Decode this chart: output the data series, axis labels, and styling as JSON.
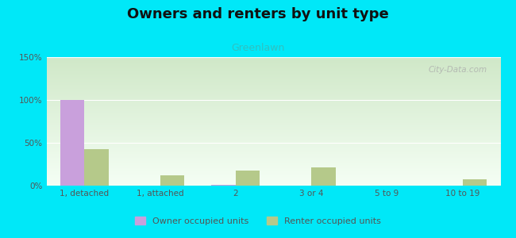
{
  "title": "Owners and renters by unit type",
  "subtitle": "Greenlawn",
  "categories": [
    "1, detached",
    "1, attached",
    "2",
    "3 or 4",
    "5 to 9",
    "10 to 19"
  ],
  "owner_values": [
    100,
    0,
    1,
    0,
    0,
    0
  ],
  "renter_values": [
    43,
    12,
    18,
    21,
    0,
    7
  ],
  "owner_color": "#c9a0dc",
  "renter_color": "#b5c98a",
  "ylim": [
    0,
    150
  ],
  "yticks": [
    0,
    50,
    100,
    150
  ],
  "ytick_labels": [
    "0%",
    "50%",
    "100%",
    "150%"
  ],
  "background_outer": "#00e8f8",
  "grad_top": "#d0e8c8",
  "grad_bottom": "#f5fff5",
  "title_fontsize": 13,
  "subtitle_fontsize": 9,
  "subtitle_color": "#30c0c0",
  "title_color": "#111111",
  "legend_labels": [
    "Owner occupied units",
    "Renter occupied units"
  ],
  "watermark": "City-Data.com",
  "tick_color": "#555555",
  "tick_fontsize": 7.5
}
